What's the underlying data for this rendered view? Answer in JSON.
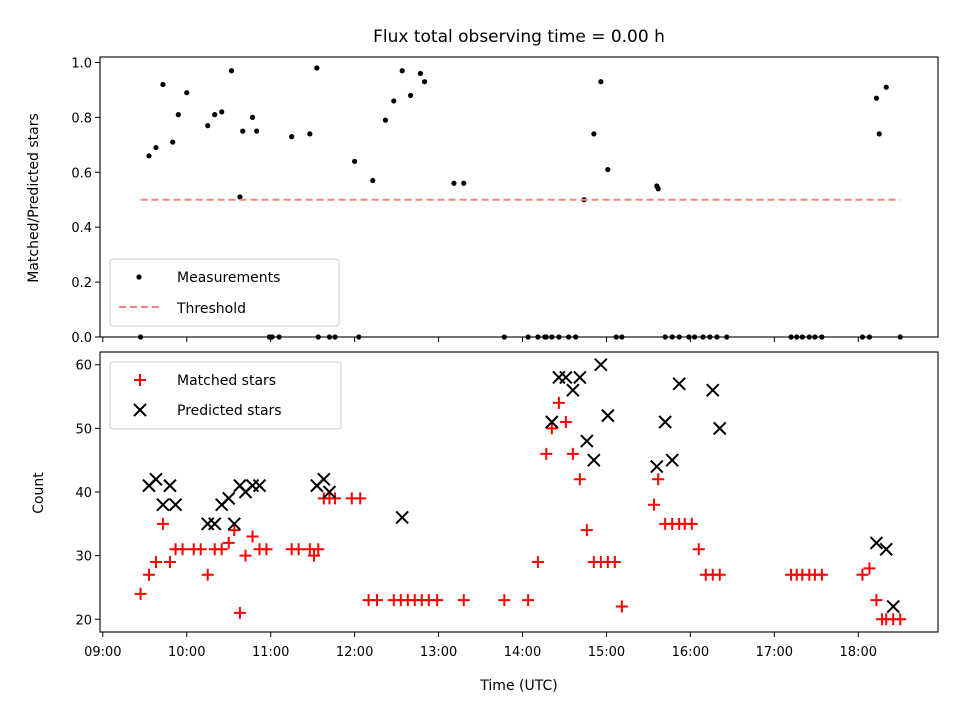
{
  "title": "Flux total observing time = 0.00 h",
  "colors": {
    "measurement": "#000000",
    "threshold": "#ff8080",
    "matched": "#ff0000",
    "predicted": "#000000"
  },
  "chart_data": [
    {
      "type": "scatter",
      "ylabel": "Matched/Predicted stars",
      "xlim": [
        "08:58",
        "18:57"
      ],
      "ylim": [
        0,
        1.02
      ],
      "y_ticks": [
        "0.0",
        "0.2",
        "0.4",
        "0.6",
        "0.8",
        "1.0"
      ],
      "grid": false,
      "legend_position": "lower-left",
      "series": [
        {
          "name": "Measurements",
          "marker": "dot",
          "x": [
            "09:27",
            "09:33",
            "09:38",
            "09:43",
            "09:50",
            "09:54",
            "10:00",
            "10:15",
            "10:20",
            "10:25",
            "10:32",
            "10:38",
            "10:40",
            "10:47",
            "10:50",
            "10:59",
            "11:01",
            "11:06",
            "11:15",
            "11:28",
            "11:33",
            "11:34",
            "11:42",
            "11:46",
            "12:00",
            "12:03",
            "12:13",
            "12:22",
            "12:28",
            "12:34",
            "12:40",
            "12:47",
            "12:50",
            "13:11",
            "13:18",
            "13:47",
            "14:04",
            "14:11",
            "14:16",
            "14:17",
            "14:21",
            "14:26",
            "14:33",
            "14:38",
            "14:44",
            "14:51",
            "14:56",
            "15:01",
            "15:07",
            "15:11",
            "15:36",
            "15:37",
            "15:42",
            "15:47",
            "15:52",
            "15:59",
            "16:03",
            "16:09",
            "16:14",
            "16:19",
            "16:26",
            "17:12",
            "17:16",
            "17:20",
            "17:25",
            "17:29",
            "17:34",
            "18:03",
            "18:08",
            "18:13",
            "18:15",
            "18:20",
            "18:30"
          ],
          "y": [
            0.0,
            0.66,
            0.69,
            0.92,
            0.71,
            0.81,
            0.89,
            0.77,
            0.81,
            0.82,
            0.97,
            0.51,
            0.75,
            0.8,
            0.75,
            0.0,
            0.0,
            0.0,
            0.73,
            0.74,
            0.98,
            0.0,
            0.0,
            0.0,
            0.64,
            0.0,
            0.57,
            0.79,
            0.86,
            0.97,
            0.88,
            0.96,
            0.93,
            0.56,
            0.56,
            0.0,
            0.0,
            0.0,
            0.0,
            0.0,
            0.0,
            0.0,
            0.0,
            0.0,
            0.5,
            0.74,
            0.93,
            0.61,
            0.0,
            0.0,
            0.55,
            0.54,
            0.0,
            0.0,
            0.0,
            0.0,
            0.0,
            0.0,
            0.0,
            0.0,
            0.0,
            0.0,
            0.0,
            0.0,
            0.0,
            0.0,
            0.0,
            0.0,
            0.0,
            0.87,
            0.74,
            0.91,
            0.0
          ]
        },
        {
          "name": "Threshold",
          "type": "line",
          "style": "dashed",
          "x": [
            "09:27",
            "18:30"
          ],
          "y": [
            0.5,
            0.5
          ]
        }
      ]
    },
    {
      "type": "scatter",
      "xlabel": "Time (UTC)",
      "ylabel": "Count",
      "xlim": [
        "08:58",
        "18:57"
      ],
      "ylim": [
        18,
        62
      ],
      "x_ticks": [
        "09:00",
        "10:00",
        "11:00",
        "12:00",
        "13:00",
        "14:00",
        "15:00",
        "16:00",
        "17:00",
        "18:00"
      ],
      "y_ticks": [
        "20",
        "30",
        "40",
        "50",
        "60"
      ],
      "grid": false,
      "legend_position": "upper-left",
      "series": [
        {
          "name": "Matched stars",
          "marker": "plus",
          "x": [
            "09:27",
            "09:33",
            "09:38",
            "09:43",
            "09:48",
            "09:52",
            "09:57",
            "10:05",
            "10:10",
            "10:15",
            "10:20",
            "10:25",
            "10:30",
            "10:34",
            "10:38",
            "10:42",
            "10:47",
            "10:52",
            "10:57",
            "11:15",
            "11:20",
            "11:28",
            "11:31",
            "11:34",
            "11:38",
            "11:42",
            "11:46",
            "11:58",
            "12:04",
            "12:10",
            "12:16",
            "12:28",
            "12:33",
            "12:38",
            "12:43",
            "12:48",
            "12:53",
            "12:59",
            "13:18",
            "13:47",
            "14:04",
            "14:11",
            "14:17",
            "14:21",
            "14:26",
            "14:31",
            "14:36",
            "14:41",
            "14:46",
            "14:51",
            "14:56",
            "15:01",
            "15:06",
            "15:11",
            "15:34",
            "15:37",
            "15:42",
            "15:47",
            "15:52",
            "15:56",
            "16:01",
            "16:06",
            "16:11",
            "16:16",
            "16:21",
            "17:12",
            "17:16",
            "17:20",
            "17:25",
            "17:29",
            "17:34",
            "18:03",
            "18:08",
            "18:13",
            "18:17",
            "18:20",
            "18:25",
            "18:30"
          ],
          "y": [
            24,
            27,
            29,
            35,
            29,
            31,
            31,
            31,
            31,
            27,
            31,
            31,
            32,
            34,
            21,
            30,
            33,
            31,
            31,
            31,
            31,
            31,
            30,
            31,
            39,
            39,
            39,
            39,
            39,
            23,
            23,
            23,
            23,
            23,
            23,
            23,
            23,
            23,
            23,
            23,
            23,
            29,
            46,
            50,
            54,
            51,
            46,
            42,
            34,
            29,
            29,
            29,
            29,
            22,
            38,
            42,
            35,
            35,
            35,
            35,
            35,
            31,
            27,
            27,
            27,
            27,
            27,
            27,
            27,
            27,
            27,
            27,
            28,
            23,
            20,
            20,
            20,
            20
          ],
          "_comment": ""
        },
        {
          "name": "Predicted stars",
          "marker": "x",
          "x": [
            "09:33",
            "09:38",
            "09:43",
            "09:48",
            "09:52",
            "10:15",
            "10:20",
            "10:25",
            "10:30",
            "10:34",
            "10:38",
            "10:42",
            "10:47",
            "10:52",
            "11:33",
            "11:38",
            "11:42",
            "12:34",
            "14:21",
            "14:26",
            "14:31",
            "14:36",
            "14:41",
            "14:46",
            "14:51",
            "14:56",
            "15:01",
            "15:36",
            "15:42",
            "15:47",
            "15:52",
            "16:16",
            "16:21",
            "18:13",
            "18:20",
            "18:25"
          ],
          "y": [
            41,
            42,
            38,
            41,
            38,
            35,
            35,
            38,
            39,
            35,
            41,
            40,
            41,
            41,
            41,
            42,
            40,
            36,
            51,
            58,
            58,
            56,
            58,
            48,
            45,
            60,
            52,
            44,
            51,
            45,
            57,
            56,
            50,
            32,
            31,
            22
          ]
        }
      ]
    }
  ]
}
